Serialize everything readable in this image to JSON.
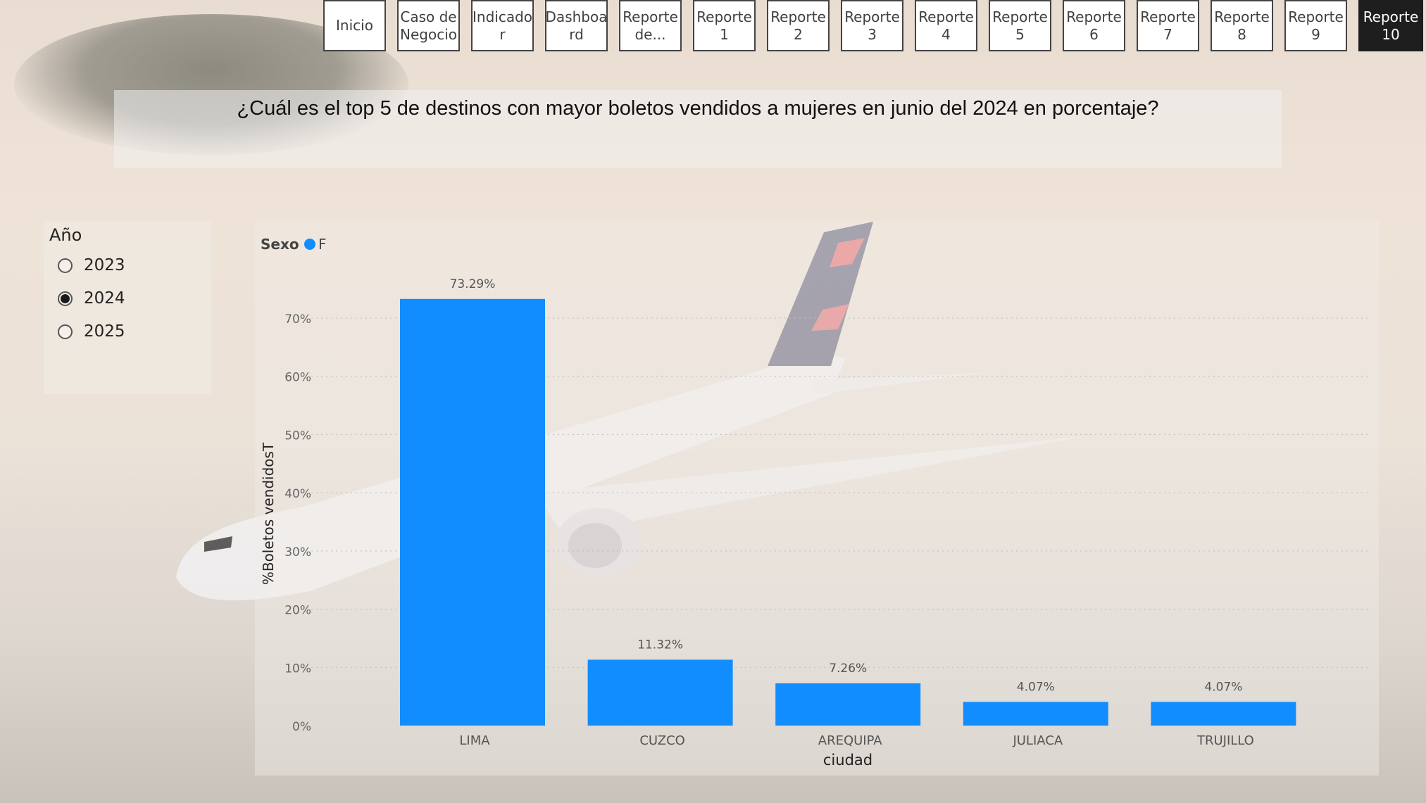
{
  "nav": {
    "buttons": [
      {
        "label": "Inicio",
        "active": false
      },
      {
        "label": "Caso de\nNegocio",
        "active": false
      },
      {
        "label": "Indicado\nr",
        "active": false
      },
      {
        "label": "Dashboa\nrd",
        "active": false
      },
      {
        "label": "Reporte\nde...",
        "active": false
      },
      {
        "label": "Reporte\n1",
        "active": false
      },
      {
        "label": "Reporte\n2",
        "active": false
      },
      {
        "label": "Reporte\n3",
        "active": false
      },
      {
        "label": "Reporte\n4",
        "active": false
      },
      {
        "label": "Reporte\n5",
        "active": false
      },
      {
        "label": "Reporte\n6",
        "active": false
      },
      {
        "label": "Reporte\n7",
        "active": false
      },
      {
        "label": "Reporte\n8",
        "active": false
      },
      {
        "label": "Reporte\n9",
        "active": false
      },
      {
        "label": "Reporte\n10",
        "active": true
      }
    ]
  },
  "title": "¿Cuál es el top 5 de destinos con mayor boletos vendidos a mujeres en junio del 2024 en porcentaje?",
  "slicer": {
    "title": "Año",
    "options": [
      {
        "label": "2023",
        "selected": false
      },
      {
        "label": "2024",
        "selected": true
      },
      {
        "label": "2025",
        "selected": false
      }
    ]
  },
  "colors": {
    "bar": "#118dff",
    "active_nav": "#1e1e1e"
  },
  "chart_data": {
    "type": "bar",
    "legend_title": "Sexo",
    "legend_position": "top-left",
    "series": [
      {
        "name": "F",
        "values": [
          73.29,
          11.32,
          7.26,
          4.07,
          4.07
        ]
      }
    ],
    "categories": [
      "LIMA",
      "CUZCO",
      "AREQUIPA",
      "JULIACA",
      "TRUJILLO"
    ],
    "data_labels": [
      "73.29%",
      "11.32%",
      "7.26%",
      "4.07%",
      "4.07%"
    ],
    "xlabel": "ciudad",
    "ylabel": "%Boletos vendidosT",
    "yticks": [
      "0%",
      "10%",
      "20%",
      "30%",
      "40%",
      "50%",
      "60%",
      "70%"
    ],
    "ylim": [
      0,
      70
    ],
    "grid": true
  }
}
